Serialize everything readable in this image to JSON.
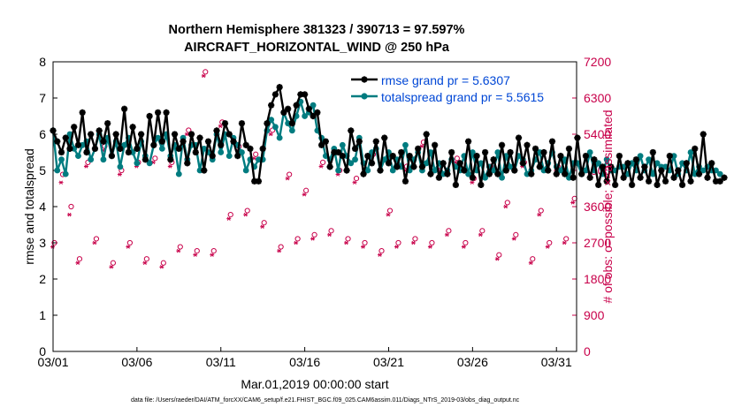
{
  "title_line1": "Northern Hemisphere 381323 / 390713 = 97.597%",
  "title_line2": "AIRCRAFT_HORIZONTAL_WIND @ 250 hPa",
  "footer": "data file: /Users/raeder/DAI/ATM_forcXX/CAM6_setup/f.e21.FHIST_BGC.f09_025.CAM6assim.011/Diags_NTrS_2019-03/obs_diag_output.nc",
  "colors": {
    "rmse": "#000000",
    "spread": "#007c80",
    "obs": "#c8004a",
    "legend_text": "#0047d6",
    "right_axis": "#c8004a"
  },
  "chart_data": {
    "type": "line",
    "title": "Northern Hemisphere 381323 / 390713 = 97.597%",
    "subtitle": "AIRCRAFT_HORIZONTAL_WIND @ 250 hPa",
    "xlabel": "Mar.01,2019 00:00:00 start",
    "ylabel": "rmse and totalspread",
    "y2label": "# of obs: o=possible; ×=assimilated",
    "xlim": [
      0,
      31.2
    ],
    "ylim": [
      0,
      8
    ],
    "y2lim": [
      0,
      7200
    ],
    "x_ticks": [
      0,
      5,
      10,
      15,
      20,
      25,
      30
    ],
    "x_tick_labels": [
      "03/01",
      "03/06",
      "03/11",
      "03/16",
      "03/21",
      "03/26",
      "03/31"
    ],
    "y_ticks": [
      0,
      1,
      2,
      3,
      4,
      5,
      6,
      7,
      8
    ],
    "y2_ticks": [
      0,
      900,
      1800,
      2700,
      3600,
      4500,
      5400,
      6300,
      7200
    ],
    "legend": [
      "rmse grand pr = 5.6307",
      "totalspread grand pr = 5.5615"
    ],
    "x_step_days": 0.25,
    "series": [
      {
        "name": "rmse",
        "axis": "left",
        "values": [
          6.1,
          5.8,
          5.5,
          5.9,
          5.6,
          6.2,
          5.7,
          6.6,
          5.5,
          6.0,
          5.6,
          6.1,
          5.8,
          6.3,
          5.4,
          6.0,
          5.6,
          6.7,
          5.5,
          6.2,
          5.6,
          6.0,
          5.3,
          6.5,
          5.7,
          6.6,
          5.8,
          6.6,
          5.3,
          6.0,
          5.6,
          5.8,
          5.2,
          6.0,
          5.5,
          5.9,
          5.0,
          5.8,
          5.4,
          6.1,
          5.7,
          6.3,
          6.0,
          5.8,
          5.4,
          6.3,
          5.7,
          5.6,
          4.7,
          4.7,
          5.6,
          6.3,
          6.8,
          7.1,
          7.3,
          6.6,
          6.7,
          6.3,
          6.8,
          7.1,
          7.1,
          6.7,
          6.5,
          6.6,
          5.7,
          5.8,
          5.1,
          5.5,
          5.5,
          5.4,
          5.0,
          6.1,
          5.6,
          5.8,
          4.9,
          5.4,
          5.2,
          5.8,
          5.0,
          5.9,
          5.2,
          5.4,
          5.1,
          5.5,
          4.7,
          5.4,
          5.1,
          5.6,
          5.1,
          6.0,
          4.9,
          5.7,
          4.8,
          5.2,
          4.9,
          5.5,
          4.6,
          5.2,
          5.0,
          5.8,
          4.8,
          5.4,
          4.6,
          5.5,
          4.9,
          5.3,
          4.9,
          5.7,
          5.0,
          5.5,
          5.0,
          5.9,
          5.2,
          5.7,
          4.9,
          5.6,
          5.1,
          5.5,
          5.0,
          5.8,
          4.9,
          5.4,
          4.9,
          5.6,
          4.8,
          5.9,
          4.9,
          5.4,
          4.8,
          5.3,
          4.6,
          5.1,
          4.7,
          5.1,
          4.6,
          5.4,
          4.8,
          5.2,
          4.6,
          5.3,
          4.8,
          5.1,
          4.7,
          5.5,
          4.6,
          5.0,
          4.7,
          5.4,
          4.8,
          5.0,
          4.6,
          5.2,
          4.7,
          5.6,
          4.9,
          6.0,
          4.8,
          5.2,
          4.7,
          4.7,
          4.8
        ]
      },
      {
        "name": "totalspread",
        "axis": "left",
        "values": [
          6.1,
          5.0,
          5.3,
          4.9,
          6.0,
          5.6,
          5.4,
          5.7,
          5.8,
          5.3,
          5.6,
          6.0,
          5.3,
          5.9,
          5.4,
          5.8,
          5.1,
          5.7,
          5.9,
          5.5,
          5.2,
          5.8,
          5.4,
          5.2,
          5.7,
          5.9,
          5.6,
          6.0,
          5.4,
          5.7,
          4.9,
          5.9,
          5.3,
          5.7,
          5.7,
          5.0,
          5.6,
          5.5,
          5.3,
          6.0,
          5.5,
          6.0,
          5.4,
          5.9,
          5.7,
          5.5,
          5.0,
          5.3,
          5.1,
          5.3,
          5.3,
          6.1,
          6.4,
          6.2,
          5.9,
          6.6,
          6.3,
          6.1,
          6.5,
          6.9,
          6.5,
          6.6,
          6.8,
          6.1,
          5.9,
          5.4,
          5.3,
          5.6,
          5.0,
          5.7,
          5.4,
          5.2,
          5.3,
          5.9,
          5.2,
          5.0,
          5.5,
          5.6,
          5.0,
          5.3,
          5.5,
          5.0,
          5.3,
          5.1,
          5.7,
          5.0,
          5.3,
          5.5,
          5.0,
          5.2,
          5.5,
          5.0,
          5.2,
          4.9,
          5.0,
          5.3,
          5.1,
          5.0,
          5.4,
          4.9,
          5.5,
          5.0,
          5.2,
          4.8,
          5.1,
          5.0,
          5.5,
          4.8,
          5.4,
          5.1,
          5.0,
          5.4,
          5.3,
          4.9,
          5.0,
          5.3,
          5.5,
          5.0,
          5.2,
          5.5,
          5.1,
          5.0,
          5.3,
          4.8,
          5.2,
          5.2,
          4.9,
          5.0,
          5.5,
          5.0,
          5.2,
          4.9,
          5.3,
          5.0,
          5.0,
          5.1,
          5.1,
          4.9,
          5.2,
          5.0,
          5.4,
          5.0,
          5.3,
          4.9,
          5.2,
          5.1,
          5.1,
          5.0,
          5.4,
          4.9,
          5.2,
          5.0,
          5.5,
          4.9,
          5.1,
          5.0,
          5.1,
          5.0,
          5.0,
          4.9
        ]
      },
      {
        "name": "obs_possible",
        "axis": "right",
        "marker": "o",
        "x": [
          0,
          0.5,
          1,
          1.5,
          2,
          2.5,
          3,
          3.5,
          4,
          4.5,
          5,
          5.5,
          6,
          6.5,
          7,
          7.5,
          8,
          8.5,
          9,
          9.5,
          10,
          10.5,
          11,
          11.5,
          12,
          12.5,
          13,
          13.5,
          14,
          14.5,
          15,
          15.5,
          16,
          16.5,
          17,
          17.5,
          18,
          18.5,
          19,
          19.5,
          20,
          20.5,
          21,
          21.5,
          22,
          22.5,
          23,
          23.5,
          24,
          24.5,
          25,
          25.5,
          26,
          26.5,
          27,
          27.5,
          28,
          28.5,
          29,
          29.5,
          30,
          30.5,
          31
        ],
        "values": [
          2700,
          4400,
          3600,
          2300,
          4700,
          2800,
          5100,
          2200,
          4500,
          2700,
          4700,
          2300,
          4800,
          2200,
          4700,
          2600,
          5500,
          2500,
          6950,
          2500,
          5700,
          3400,
          5100,
          3500,
          4900,
          3200,
          5500,
          2600,
          4400,
          2800,
          4000,
          2900,
          4700,
          3000,
          4500,
          2800,
          4300,
          2700,
          4900,
          2500,
          3500,
          2700,
          4600,
          2800,
          5200,
          2700,
          4600,
          3000,
          4800,
          2700,
          4300,
          3000,
          4600,
          2400,
          3700,
          2900,
          4700,
          2300,
          3500,
          2700,
          4600,
          2800,
          3800
        ]
      },
      {
        "name": "obs_assimilated",
        "axis": "right",
        "marker": "x",
        "x": [
          0,
          0.5,
          1,
          1.5,
          2,
          2.5,
          3,
          3.5,
          4,
          4.5,
          5,
          5.5,
          6,
          6.5,
          7,
          7.5,
          8,
          8.5,
          9,
          9.5,
          10,
          10.5,
          11,
          11.5,
          12,
          12.5,
          13,
          13.5,
          14,
          14.5,
          15,
          15.5,
          16,
          16.5,
          17,
          17.5,
          18,
          18.5,
          19,
          19.5,
          20,
          20.5,
          21,
          21.5,
          22,
          22.5,
          23,
          23.5,
          24,
          24.5,
          25,
          25.5,
          26,
          26.5,
          27,
          27.5,
          28,
          28.5,
          29,
          29.5,
          30,
          30.5,
          31
        ],
        "values": [
          2600,
          4200,
          3400,
          2200,
          4600,
          2700,
          5000,
          2100,
          4400,
          2600,
          4600,
          2200,
          4700,
          2100,
          4600,
          2500,
          5400,
          2400,
          6850,
          2400,
          5600,
          3300,
          5000,
          3400,
          4800,
          3100,
          5400,
          2500,
          4300,
          2700,
          3900,
          2800,
          4600,
          2900,
          4400,
          2700,
          4200,
          2600,
          4800,
          2400,
          3400,
          2600,
          4500,
          2700,
          5100,
          2600,
          4500,
          2900,
          4700,
          2600,
          4200,
          2900,
          4500,
          2300,
          3600,
          2800,
          4600,
          2200,
          3400,
          2600,
          4500,
          2700,
          3700
        ]
      }
    ]
  }
}
